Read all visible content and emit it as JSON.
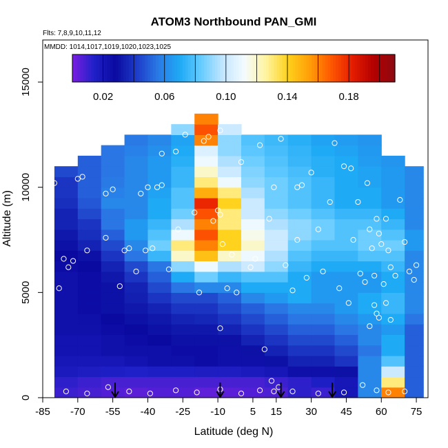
{
  "chart_data": {
    "type": "heatmap",
    "title": "ATOM3 Northbound PAN_GMI",
    "subtitle_flights": "Flts: 7,8,9,10,11,12",
    "subtitle_dates": "MMDD: 1014,1017,1019,1020,1023,1025",
    "xlabel": "Latitude (deg N)",
    "ylabel": "Altitude (m)",
    "xlim": [
      -85,
      80
    ],
    "ylim": [
      0,
      17000
    ],
    "x_ticks": [
      -85,
      -70,
      -55,
      -40,
      -25,
      -10,
      5,
      15,
      30,
      45,
      60,
      75
    ],
    "y_ticks": [
      0,
      5000,
      10000,
      15000
    ],
    "colorbar": {
      "min": 0.0,
      "max": 0.21,
      "tick_values": [
        0.02,
        0.06,
        0.1,
        0.14,
        0.18
      ],
      "tick_labels": [
        "0.02",
        "0.06",
        "0.10",
        "0.14",
        "0.18"
      ],
      "colors": [
        "#7a1fe0",
        "#2020c8",
        "#0a0aa0",
        "#1e3cc8",
        "#2a7ae6",
        "#1eaaf5",
        "#66ccff",
        "#c4e6ff",
        "#f4fbff",
        "#fff4a0",
        "#ffd21e",
        "#ffa008",
        "#ff5a00",
        "#e61e00",
        "#b40000",
        "#8c0a12"
      ]
    },
    "arrows_latitude": [
      -54,
      -9,
      17,
      39
    ],
    "field_grid": {
      "lat_edges": [
        -80,
        -70,
        -60,
        -50,
        -40,
        -30,
        -20,
        -10,
        0,
        10,
        20,
        30,
        40,
        50,
        60,
        70,
        78
      ],
      "alt_edges": [
        0,
        500,
        1000,
        1500,
        2000,
        2500,
        3000,
        3500,
        4000,
        4500,
        5000,
        5500,
        6000,
        6500,
        7000,
        7500,
        8000,
        8500,
        9000,
        9500,
        10000,
        10500,
        11000,
        11500,
        12000,
        12500,
        13000,
        13500
      ],
      "values": [
        [
          0.01,
          0.008,
          0.006,
          0.005,
          0.006,
          0.006,
          0.004,
          0.005,
          0.006,
          0.007,
          0.012,
          0.01,
          0.02,
          0.06,
          0.16,
          0.05
        ],
        [
          0.012,
          0.01,
          0.008,
          0.008,
          0.008,
          0.008,
          0.008,
          0.008,
          0.008,
          0.01,
          0.012,
          0.015,
          0.02,
          0.06,
          0.13,
          0.05
        ],
        [
          0.018,
          0.016,
          0.015,
          0.014,
          0.015,
          0.015,
          0.016,
          0.016,
          0.018,
          0.02,
          0.025,
          0.025,
          0.03,
          0.06,
          0.1,
          0.05
        ],
        [
          0.02,
          0.02,
          0.02,
          0.022,
          0.025,
          0.025,
          0.026,
          0.025,
          0.025,
          0.03,
          0.035,
          0.035,
          0.04,
          0.06,
          0.08,
          0.05
        ],
        [
          0.022,
          0.022,
          0.024,
          0.025,
          0.025,
          0.026,
          0.026,
          0.025,
          0.03,
          0.035,
          0.04,
          0.04,
          0.045,
          0.055,
          0.07,
          0.05
        ],
        [
          0.022,
          0.022,
          0.024,
          0.026,
          0.028,
          0.03,
          0.03,
          0.03,
          0.035,
          0.04,
          0.045,
          0.045,
          0.05,
          0.06,
          0.07,
          0.05
        ],
        [
          0.024,
          0.024,
          0.026,
          0.028,
          0.03,
          0.032,
          0.032,
          0.035,
          0.04,
          0.045,
          0.05,
          0.05,
          0.055,
          0.06,
          0.065,
          0.05
        ],
        [
          0.024,
          0.025,
          0.028,
          0.03,
          0.032,
          0.035,
          0.036,
          0.04,
          0.045,
          0.05,
          0.055,
          0.055,
          0.06,
          0.065,
          0.07,
          0.055
        ],
        [
          0.024,
          0.026,
          0.03,
          0.032,
          0.035,
          0.04,
          0.04,
          0.045,
          0.05,
          0.055,
          0.06,
          0.06,
          0.065,
          0.07,
          0.075,
          0.06
        ],
        [
          0.024,
          0.026,
          0.03,
          0.034,
          0.04,
          0.045,
          0.045,
          0.05,
          0.06,
          0.065,
          0.07,
          0.065,
          0.065,
          0.07,
          0.075,
          0.06
        ],
        [
          0.024,
          0.026,
          0.03,
          0.035,
          0.045,
          0.055,
          0.06,
          0.06,
          0.07,
          0.07,
          0.07,
          0.065,
          0.065,
          0.065,
          0.07,
          0.06
        ],
        [
          0.024,
          0.026,
          0.032,
          0.04,
          0.05,
          0.07,
          0.085,
          0.075,
          0.08,
          0.08,
          0.07,
          0.065,
          0.065,
          0.065,
          0.07,
          0.06
        ],
        [
          0.026,
          0.028,
          0.035,
          0.045,
          0.055,
          0.09,
          0.11,
          0.095,
          0.1,
          0.09,
          0.075,
          0.07,
          0.07,
          0.07,
          0.075,
          0.06
        ],
        [
          0.028,
          0.03,
          0.04,
          0.055,
          0.075,
          0.12,
          0.145,
          0.12,
          0.11,
          0.095,
          0.08,
          0.075,
          0.075,
          0.08,
          0.08,
          0.06
        ],
        [
          0.03,
          0.035,
          0.045,
          0.06,
          0.085,
          0.13,
          0.16,
          0.14,
          0.12,
          0.1,
          0.085,
          0.08,
          0.08,
          0.085,
          0.085,
          0.065
        ],
        [
          0.032,
          0.038,
          0.05,
          0.065,
          0.08,
          0.11,
          0.17,
          0.14,
          0.115,
          0.1,
          0.09,
          0.085,
          0.08,
          0.085,
          0.08,
          0.065
        ],
        [
          0.035,
          0.04,
          0.055,
          0.065,
          0.075,
          0.095,
          0.16,
          0.13,
          0.11,
          0.095,
          0.09,
          0.085,
          0.08,
          0.08,
          0.075,
          0.06
        ],
        [
          0.035,
          0.045,
          0.055,
          0.06,
          0.07,
          0.085,
          0.17,
          0.13,
          0.1,
          0.09,
          0.085,
          0.08,
          0.075,
          0.075,
          0.07,
          0.06
        ],
        [
          0.038,
          0.048,
          0.06,
          0.06,
          0.07,
          0.08,
          0.18,
          0.14,
          0.1,
          0.085,
          0.08,
          0.075,
          0.07,
          0.07,
          0.065,
          0.06
        ],
        [
          0.04,
          0.05,
          0.058,
          0.06,
          0.068,
          0.08,
          0.15,
          0.13,
          0.095,
          0.085,
          0.08,
          0.075,
          0.07,
          0.07,
          0.065,
          0.06
        ],
        [
          0.04,
          0.05,
          0.056,
          0.06,
          0.065,
          0.075,
          0.13,
          0.11,
          0.09,
          0.085,
          0.08,
          0.075,
          0.07,
          0.068,
          0.065,
          0.06
        ],
        [
          0.045,
          0.05,
          0.055,
          0.06,
          0.065,
          0.075,
          0.12,
          0.1,
          0.088,
          0.082,
          0.078,
          0.072,
          0.07,
          0.068,
          0.065,
          0.06
        ],
        [
          null,
          0.05,
          0.055,
          0.06,
          0.065,
          0.072,
          0.11,
          0.095,
          0.085,
          0.08,
          0.075,
          0.072,
          0.07,
          0.066,
          0.064,
          null
        ],
        [
          null,
          null,
          0.055,
          0.058,
          0.062,
          0.07,
          0.105,
          0.09,
          0.082,
          0.078,
          0.074,
          0.07,
          0.068,
          0.065,
          null,
          null
        ],
        [
          null,
          null,
          null,
          0.056,
          0.06,
          0.068,
          0.16,
          0.09,
          0.08,
          0.076,
          0.072,
          0.068,
          0.066,
          0.064,
          null,
          null
        ],
        [
          null,
          null,
          null,
          null,
          null,
          0.09,
          0.17,
          0.1,
          null,
          null,
          null,
          null,
          null,
          null,
          null,
          null
        ],
        [
          null,
          null,
          null,
          null,
          null,
          null,
          0.16,
          null,
          null,
          null,
          null,
          null,
          null,
          null,
          null,
          null
        ]
      ]
    },
    "sample_points": [
      [
        -82,
        7800
      ],
      [
        -80,
        10200
      ],
      [
        -78,
        5200
      ],
      [
        -76,
        6600
      ],
      [
        -74,
        6200
      ],
      [
        -72,
        6500
      ],
      [
        -70,
        10400
      ],
      [
        -68,
        10500
      ],
      [
        -66,
        7000
      ],
      [
        -62,
        11800
      ],
      [
        -58,
        7600
      ],
      [
        -58,
        9700
      ],
      [
        -55,
        9900
      ],
      [
        -52,
        5300
      ],
      [
        -50,
        7000
      ],
      [
        -48,
        7100
      ],
      [
        -45,
        6000
      ],
      [
        -43,
        9700
      ],
      [
        -41,
        7000
      ],
      [
        -40,
        10000
      ],
      [
        -38,
        7100
      ],
      [
        -36,
        10000
      ],
      [
        -34,
        10100
      ],
      [
        -34,
        11600
      ],
      [
        -31,
        6100
      ],
      [
        -28,
        11700
      ],
      [
        -27,
        8000
      ],
      [
        -24,
        12500
      ],
      [
        -20,
        8800
      ],
      [
        -18,
        5000
      ],
      [
        -16,
        12200
      ],
      [
        -14,
        12400
      ],
      [
        -12,
        8400
      ],
      [
        -10,
        8900
      ],
      [
        -9,
        8700
      ],
      [
        -9,
        12700
      ],
      [
        -9,
        3300
      ],
      [
        -8,
        7300
      ],
      [
        -6,
        5200
      ],
      [
        -4,
        6800
      ],
      [
        -2,
        5000
      ],
      [
        0,
        11200
      ],
      [
        4,
        6200
      ],
      [
        6,
        6600
      ],
      [
        8,
        12000
      ],
      [
        10,
        2300
      ],
      [
        12,
        8500
      ],
      [
        14,
        10000
      ],
      [
        17,
        12300
      ],
      [
        19,
        6300
      ],
      [
        22,
        5100
      ],
      [
        24,
        7500
      ],
      [
        24,
        10000
      ],
      [
        26,
        10100
      ],
      [
        28,
        5700
      ],
      [
        30,
        10700
      ],
      [
        33,
        8000
      ],
      [
        35,
        6000
      ],
      [
        38,
        9300
      ],
      [
        40,
        12100
      ],
      [
        42,
        5200
      ],
      [
        44,
        11000
      ],
      [
        46,
        4500
      ],
      [
        47,
        10900
      ],
      [
        48,
        7500
      ],
      [
        50,
        9300
      ],
      [
        51,
        5900
      ],
      [
        53,
        5500
      ],
      [
        54,
        10200
      ],
      [
        55,
        8000
      ],
      [
        55,
        3400
      ],
      [
        56,
        7100
      ],
      [
        57,
        5800
      ],
      [
        57,
        4400
      ],
      [
        58,
        8500
      ],
      [
        58,
        4000
      ],
      [
        59,
        3800
      ],
      [
        59,
        7800
      ],
      [
        60,
        7300
      ],
      [
        61,
        5400
      ],
      [
        62,
        8500
      ],
      [
        62,
        4500
      ],
      [
        63,
        7000
      ],
      [
        64,
        6200
      ],
      [
        64,
        3700
      ],
      [
        66,
        5800
      ],
      [
        68,
        9400
      ],
      [
        70,
        7400
      ],
      [
        72,
        6000
      ],
      [
        74,
        5600
      ],
      [
        75,
        6300
      ],
      [
        -75,
        300
      ],
      [
        -66,
        200
      ],
      [
        -57,
        500
      ],
      [
        -48,
        300
      ],
      [
        -39,
        200
      ],
      [
        -28,
        350
      ],
      [
        -19,
        250
      ],
      [
        -9,
        400
      ],
      [
        0,
        200
      ],
      [
        8,
        350
      ],
      [
        13,
        800
      ],
      [
        14,
        300
      ],
      [
        16,
        500
      ],
      [
        22,
        300
      ],
      [
        33,
        200
      ],
      [
        44,
        250
      ],
      [
        52,
        600
      ],
      [
        58,
        350
      ],
      [
        63,
        250
      ],
      [
        70,
        300
      ]
    ]
  }
}
